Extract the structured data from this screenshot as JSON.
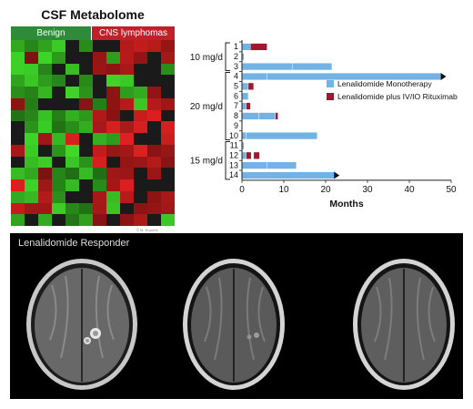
{
  "heatmap": {
    "title": "CSF Metabolome",
    "groups": [
      {
        "label": "Benign",
        "color": "#2e8b3a"
      },
      {
        "label": "CNS lymphomas",
        "color": "#c0202a"
      }
    ],
    "credit": "© M. Rupertz",
    "colors": {
      "up": "#e02020",
      "down": "#3fd828",
      "neutral": "#1a1a1a"
    }
  },
  "mri": {
    "label": "Lenalidomide Responder"
  },
  "chart_data": {
    "type": "bar",
    "orientation": "horizontal",
    "stacked": true,
    "categories": [
      "1",
      "2",
      "3",
      "4",
      "5",
      "6",
      "7",
      "8",
      "9",
      "10",
      "11",
      "12",
      "13",
      "14"
    ],
    "xlabel": "Months",
    "xlim": [
      0,
      50
    ],
    "xticks": [
      0,
      10,
      20,
      30,
      40,
      50
    ],
    "dose_groups": [
      {
        "label": "10 mg/d",
        "patients": [
          "1",
          "2",
          "3"
        ]
      },
      {
        "label": "20 mg/d",
        "patients": [
          "4",
          "5",
          "6",
          "7",
          "8",
          "9",
          "10"
        ]
      },
      {
        "label": "15 mg/d",
        "patients": [
          "11",
          "12",
          "13",
          "14"
        ]
      }
    ],
    "legend_position": "right",
    "ongoing": [
      "4",
      "14"
    ],
    "series": [
      {
        "name": "Lenalidomide Monotherapy",
        "color": "#72b2e4",
        "segments": [
          [
            [
              0,
              2
            ]
          ],
          [
            [
              0,
              0.5
            ]
          ],
          [
            [
              0,
              12
            ],
            [
              12,
              21.5
            ]
          ],
          [
            [
              0,
              6
            ],
            [
              6,
              47.5
            ]
          ],
          [
            [
              0,
              1.5
            ]
          ],
          [
            [
              0,
              1.5
            ]
          ],
          [
            [
              0,
              1
            ]
          ],
          [
            [
              0,
              4
            ],
            [
              4,
              8
            ]
          ],
          [],
          [
            [
              0,
              1
            ],
            [
              1,
              18
            ]
          ],
          [
            [
              0,
              0.5
            ]
          ],
          [
            [
              0,
              1
            ]
          ],
          [
            [
              0,
              6
            ],
            [
              6,
              13
            ]
          ],
          [
            [
              0,
              22
            ]
          ]
        ]
      },
      {
        "name": "Lenalidomide plus IV/IO Rituximab",
        "color": "#a0182e",
        "segments": [
          [
            [
              2,
              6
            ]
          ],
          [],
          [],
          [],
          [
            [
              1.5,
              2.8
            ]
          ],
          [],
          [
            [
              1,
              2
            ]
          ],
          [
            [
              8,
              8.6
            ]
          ],
          [],
          [],
          [],
          [
            [
              1,
              2.2
            ],
            [
              2.8,
              4.2
            ]
          ],
          [],
          []
        ]
      }
    ]
  }
}
